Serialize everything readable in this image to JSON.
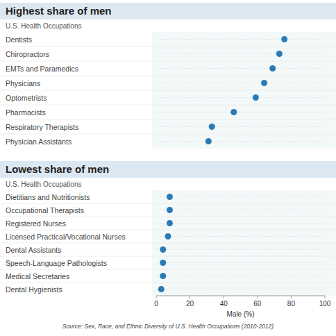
{
  "chart_data": [
    {
      "type": "dot",
      "title": "Highest share of men",
      "subtitle": "U.S. Health Occupations",
      "categories": [
        "Dentists",
        "Chiropractors",
        "EMTs and Paramedics",
        "Physicians",
        "Optometrists",
        "Pharmacists",
        "Respiratory Therapists",
        "Physician Assistants"
      ],
      "values": [
        76,
        73,
        69,
        64,
        59,
        46,
        33,
        31
      ],
      "color": "#2a7ab5",
      "xlim": [
        0,
        100
      ],
      "tick_labels": false,
      "grid": false
    },
    {
      "type": "dot",
      "title": "Lowest share of men",
      "subtitle": "U.S. Health Occupations",
      "categories": [
        "Dietitians and Nutritionists",
        "Occupational Therapists",
        "Registered Nurses",
        "Licensed Practical/Vocational Nurses",
        "Dental Assistants",
        "Speech-Language Pathologists",
        "Medical Secretaries",
        "Dental Hygienists"
      ],
      "values": [
        8,
        8,
        8,
        7,
        4,
        4,
        4,
        3
      ],
      "color": "#2a7ab5",
      "xlim": [
        0,
        100
      ],
      "xticks": [
        0,
        20,
        40,
        60,
        80,
        100
      ],
      "xlabel": "Male (%)",
      "grid": false,
      "source": "Source: Sex, Race, and Ethnic Diversity of U.S. Health Occupations (2010-2012)"
    }
  ]
}
